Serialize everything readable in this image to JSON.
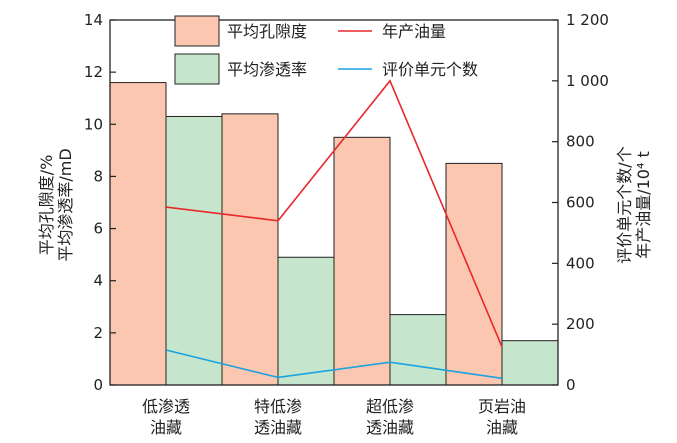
{
  "chart_data": {
    "type": "bar",
    "categories": [
      [
        "低渗透",
        "油藏"
      ],
      [
        "特低渗",
        "透油藏"
      ],
      [
        "超低渗",
        "透油藏"
      ],
      [
        "页岩油",
        "油藏"
      ]
    ],
    "bar_series": [
      {
        "name": "平均孔隙度",
        "values": [
          11.6,
          10.4,
          9.5,
          8.5
        ],
        "color": "#fcc7b0"
      },
      {
        "name": "平均渗透率",
        "values": [
          10.3,
          4.9,
          2.7,
          1.7
        ],
        "color": "#c5e5cc"
      }
    ],
    "line_series": [
      {
        "name": "年产油量",
        "values": [
          585,
          540,
          1000,
          125
        ],
        "color": "#e8282b"
      },
      {
        "name": "评价单元个数",
        "values": [
          115,
          25,
          75,
          22
        ],
        "color": "#1aa3e0"
      }
    ],
    "y_left": {
      "label_lines": [
        "平均孔隙度/%",
        "平均渗透率/mD"
      ],
      "ylim": [
        0,
        14
      ],
      "ticks": [
        0,
        2,
        4,
        6,
        8,
        10,
        12,
        14
      ],
      "tick_labels": [
        "0",
        "2",
        "4",
        "6",
        "8",
        "10",
        "12",
        "14"
      ]
    },
    "y_right": {
      "label_lines": [
        "评价单元个数/个",
        "年产油量/10⁴ t"
      ],
      "ylim": [
        0,
        1200
      ],
      "ticks": [
        0,
        200,
        400,
        600,
        800,
        1000,
        1200
      ],
      "tick_labels": [
        "0",
        "200",
        "400",
        "600",
        "800",
        "1 000",
        "1 200"
      ]
    },
    "legend": {
      "position": "top",
      "items": [
        {
          "label": "平均孔隙度",
          "kind": "patch",
          "color": "#fcc7b0"
        },
        {
          "label": "年产油量",
          "kind": "line",
          "color": "#e8282b"
        },
        {
          "label": "平均渗透率",
          "kind": "patch",
          "color": "#c5e5cc"
        },
        {
          "label": "评价单元个数",
          "kind": "line",
          "color": "#1aa3e0"
        }
      ]
    },
    "grid": false
  }
}
